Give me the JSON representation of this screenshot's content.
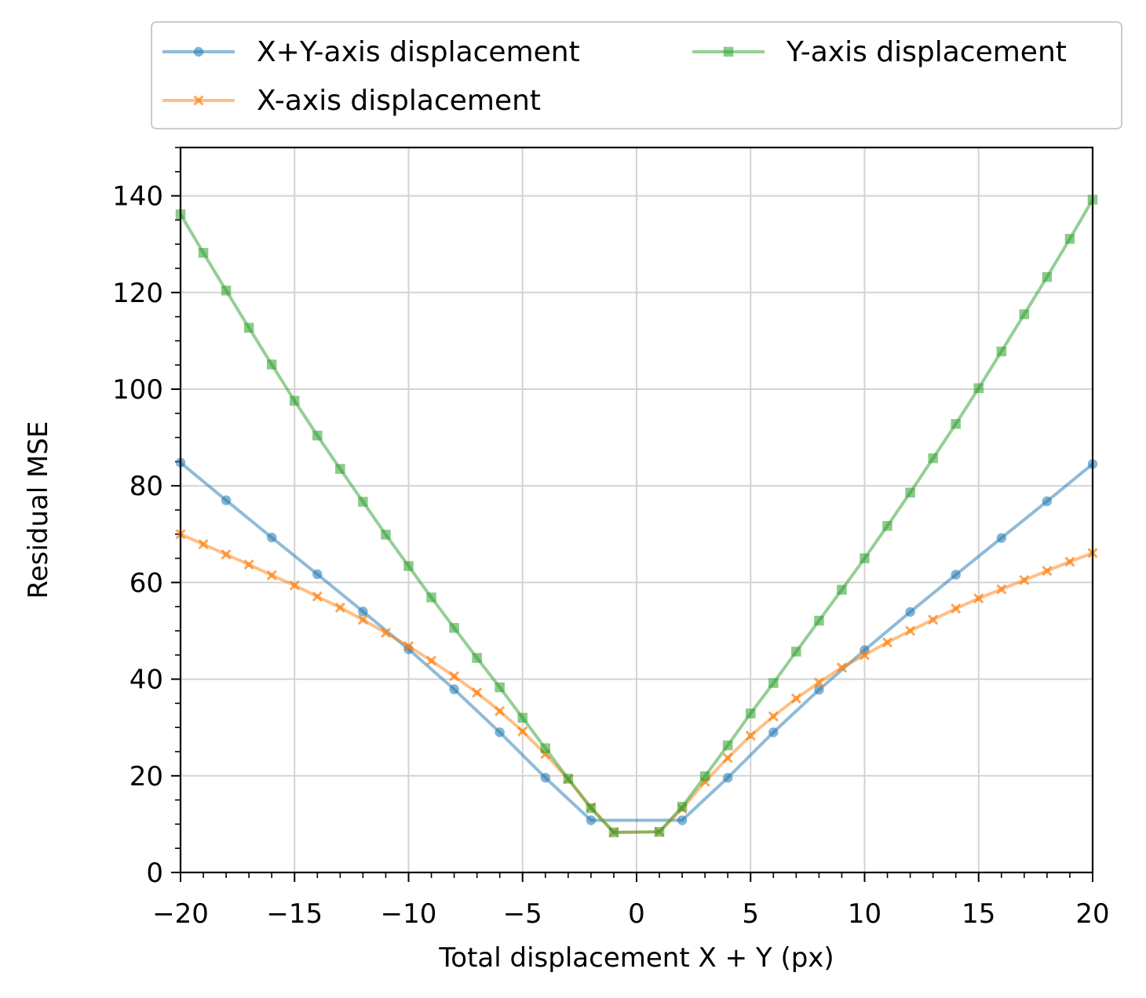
{
  "chart_data": {
    "type": "line",
    "title": "",
    "xlabel": "Total displacement X + Y (px)",
    "ylabel": "Residual MSE",
    "xlim": [
      -20,
      20
    ],
    "ylim": [
      0,
      150
    ],
    "xticks": [
      -20,
      -15,
      -10,
      -5,
      0,
      5,
      10,
      15,
      20
    ],
    "xtick_labels": [
      "−20",
      "−15",
      "−10",
      "−5",
      "0",
      "5",
      "10",
      "15",
      "20"
    ],
    "yticks": [
      0,
      20,
      40,
      60,
      80,
      100,
      120,
      140
    ],
    "ytick_labels": [
      "0",
      "20",
      "40",
      "60",
      "80",
      "100",
      "120",
      "140"
    ],
    "grid": true,
    "legend_position": "top, above plot, 2 columns",
    "series": [
      {
        "name": "X+Y-axis displacement",
        "color": "#1f77b4",
        "marker": "circle",
        "x": [
          -20,
          -18,
          -16,
          -14,
          -12,
          -10,
          -8,
          -6,
          -4,
          -2,
          2,
          4,
          6,
          8,
          10,
          12,
          14,
          16,
          18,
          20
        ],
        "y": [
          84.8,
          77.0,
          69.3,
          61.7,
          54.0,
          46.2,
          37.9,
          29.0,
          19.6,
          10.8,
          10.8,
          19.6,
          29.0,
          37.8,
          46.0,
          53.9,
          61.6,
          69.2,
          76.8,
          84.5
        ]
      },
      {
        "name": "X-axis displacement",
        "color": "#ff7f0e",
        "marker": "x",
        "x": [
          -20,
          -19,
          -18,
          -17,
          -16,
          -15,
          -14,
          -13,
          -12,
          -11,
          -10,
          -9,
          -8,
          -7,
          -6,
          -5,
          -4,
          -3,
          -2,
          -1,
          1,
          2,
          3,
          4,
          5,
          6,
          7,
          8,
          9,
          10,
          11,
          12,
          13,
          14,
          15,
          16,
          17,
          18,
          19,
          20
        ],
        "y": [
          70.0,
          67.9,
          65.8,
          63.7,
          61.5,
          59.4,
          57.1,
          54.8,
          52.3,
          49.6,
          46.8,
          43.8,
          40.6,
          37.2,
          33.4,
          29.2,
          24.5,
          19.3,
          13.5,
          8.3,
          8.4,
          13.2,
          18.8,
          23.7,
          28.3,
          32.3,
          36.0,
          39.3,
          42.4,
          45.0,
          47.6,
          50.0,
          52.3,
          54.6,
          56.7,
          58.6,
          60.5,
          62.4,
          64.3,
          66.1
        ]
      },
      {
        "name": "Y-axis displacement",
        "color": "#2ca02c",
        "marker": "square",
        "x": [
          -20,
          -19,
          -18,
          -17,
          -16,
          -15,
          -14,
          -13,
          -12,
          -11,
          -10,
          -9,
          -8,
          -7,
          -6,
          -5,
          -4,
          -3,
          -2,
          -1,
          1,
          2,
          3,
          4,
          5,
          6,
          7,
          8,
          9,
          10,
          11,
          12,
          13,
          14,
          15,
          16,
          17,
          18,
          19,
          20
        ],
        "y": [
          136.2,
          128.2,
          120.4,
          112.7,
          105.1,
          97.6,
          90.4,
          83.5,
          76.7,
          69.9,
          63.4,
          56.9,
          50.6,
          44.4,
          38.3,
          32.0,
          25.7,
          19.4,
          13.3,
          8.3,
          8.4,
          13.6,
          19.9,
          26.3,
          32.9,
          39.2,
          45.7,
          52.1,
          58.5,
          65.0,
          71.7,
          78.6,
          85.7,
          92.8,
          100.2,
          107.8,
          115.5,
          123.2,
          131.1,
          139.2
        ]
      }
    ]
  }
}
